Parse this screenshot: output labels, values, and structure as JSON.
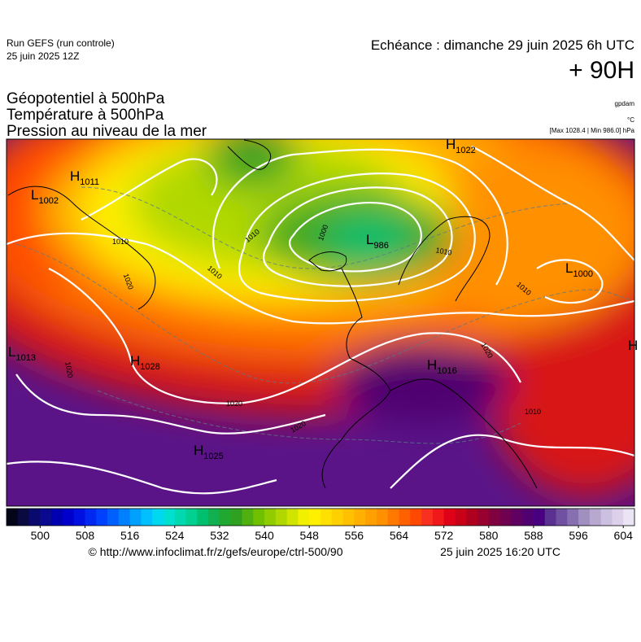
{
  "header": {
    "run": "Run GEFS (run controle)",
    "run_date": "25 juin 2025 12Z",
    "echeance": "Echéance : dimanche 29 juin 2025 6h UTC",
    "lead": "+ 90H"
  },
  "fields": [
    "Géopotentiel à 500hPa",
    "Température à 500hPa",
    "Pression au niveau de la mer"
  ],
  "units": {
    "geopotential": "gpdam",
    "temperature": "°C",
    "pressure": "[Max 1028.4 | Min 986.0] hPa"
  },
  "centers": [
    {
      "letter": "H",
      "value": "1011"
    },
    {
      "letter": "L",
      "value": "1002"
    },
    {
      "letter": "L",
      "value": "986"
    },
    {
      "letter": "H",
      "value": "1028"
    },
    {
      "letter": "L",
      "value": "1013"
    },
    {
      "letter": "H",
      "value": "1025"
    },
    {
      "letter": "L",
      "value": "1000"
    },
    {
      "letter": "H",
      "value": "1016"
    },
    {
      "letter": "H",
      "value": "1022"
    },
    {
      "letter": "H"
    }
  ],
  "contour_labels": [
    "1010",
    "1020",
    "1020",
    "1020",
    "1020",
    "1010",
    "1020",
    "1010",
    "1000",
    "1010",
    "1010",
    "1010"
  ],
  "colorbar": {
    "range": [
      494,
      606
    ],
    "ticks": [
      500,
      508,
      516,
      524,
      532,
      540,
      548,
      556,
      564,
      572,
      580,
      588,
      596,
      604
    ],
    "colors": [
      "#05051a",
      "#0a0a40",
      "#0a0a6e",
      "#0a0a90",
      "#0000b0",
      "#0000cc",
      "#0010e0",
      "#0028f0",
      "#0040ff",
      "#0060ff",
      "#0080ff",
      "#00a0ff",
      "#00c0ff",
      "#00d8f0",
      "#00e0d0",
      "#00d8b0",
      "#00d090",
      "#00c070",
      "#10b050",
      "#20a830",
      "#30a020",
      "#50b010",
      "#70c000",
      "#90cc00",
      "#b0d800",
      "#d0e400",
      "#f0f000",
      "#fff000",
      "#ffe000",
      "#ffd000",
      "#ffc000",
      "#ffb000",
      "#ffa000",
      "#ff9000",
      "#ff7800",
      "#ff6000",
      "#ff4800",
      "#f83020",
      "#f01818",
      "#e00018",
      "#c80018",
      "#b00020",
      "#980030",
      "#800040",
      "#700050",
      "#600060",
      "#500070",
      "#480080",
      "#5a3090",
      "#7050a0",
      "#8870b0",
      "#a090c0",
      "#b8a8d0",
      "#ccc0e0",
      "#ddd0ea",
      "#ebe4f4"
    ]
  },
  "footer": {
    "source": "© http://www.infoclimat.fr/z/gefs/europe/ctrl-500/90",
    "issued": "25 juin 2025 16:20 UTC"
  }
}
